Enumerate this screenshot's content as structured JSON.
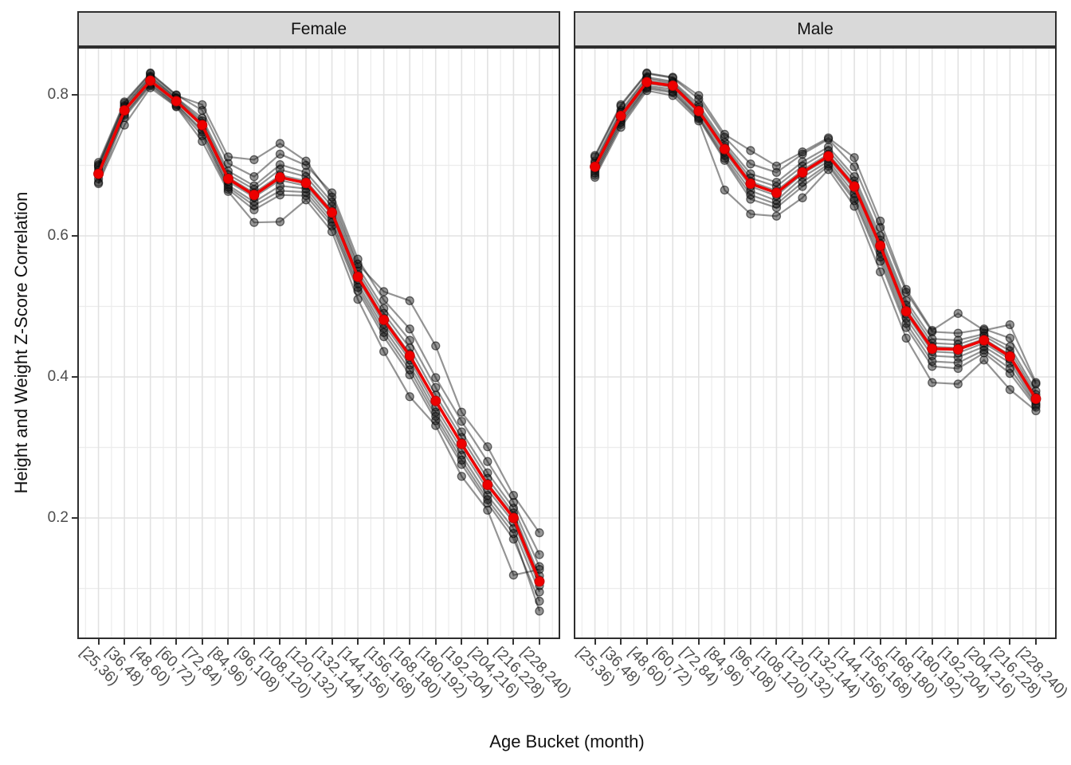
{
  "figure": {
    "y_axis_title": "Height and Weight Z-Score Correlation",
    "x_axis_title": "Age Bucket (month)"
  },
  "chart_data": {
    "type": "line",
    "faceted": true,
    "title": "",
    "xlabel": "Age Bucket (month)",
    "ylabel": "Height and Weight Z-Score Correlation",
    "categories": [
      "[25,36)",
      "[36,48)",
      "[48,60)",
      "[60,72)",
      "[72,84)",
      "[84,96)",
      "[96,108)",
      "[108,120)",
      "[120,132)",
      "[132,144)",
      "[144,156)",
      "[156,168)",
      "[168,180)",
      "[180,192)",
      "[192,204)",
      "[204,216)",
      "[216,228)",
      "[228,240)"
    ],
    "y_ticks": [
      0.8,
      0.6,
      0.4,
      0.2
    ],
    "y_tick_labels": [
      "0.8",
      "0.6",
      "0.4",
      "0.2"
    ],
    "ylim": [
      0.03,
      0.87
    ],
    "grid": {
      "major_y": [
        0.2,
        0.4,
        0.6,
        0.8
      ],
      "minor_y": [
        0.1,
        0.3,
        0.5,
        0.7
      ],
      "vertical": "per-category-with-minor"
    },
    "legend": "none",
    "style": {
      "mean_color": "#ee0000",
      "mean_point_edge": "#c00000",
      "replicate_line": "rgba(0,0,0,0.42)",
      "replicate_point_fill": "rgba(25,25,25,0.45)",
      "replicate_point_edge": "rgba(0,0,0,0.55)",
      "grid_major": "#e2e2e2",
      "grid_minor": "#ececec",
      "strip_fill": "#d9d9d9",
      "panel_border": "#2e2e2e",
      "axis_text_color": "#4d4d4d",
      "title_text_color": "#111111"
    },
    "facets": [
      {
        "label": "Female",
        "mean": {
          "name": "mean",
          "values": [
            0.688,
            0.778,
            0.82,
            0.791,
            0.757,
            0.681,
            0.658,
            0.683,
            0.675,
            0.633,
            0.542,
            0.481,
            0.43,
            0.366,
            0.305,
            0.247,
            0.2,
            0.11
          ]
        },
        "replicates": [
          {
            "values": [
              0.69,
              0.78,
              0.823,
              0.793,
              0.76,
              0.683,
              0.661,
              0.686,
              0.678,
              0.636,
              0.545,
              0.484,
              0.433,
              0.366,
              0.307,
              0.249,
              0.203,
              0.112
            ]
          },
          {
            "values": [
              0.697,
              0.785,
              0.827,
              0.796,
              0.767,
              0.692,
              0.671,
              0.701,
              0.69,
              0.648,
              0.556,
              0.497,
              0.452,
              0.385,
              0.322,
              0.264,
              0.214,
              0.131
            ]
          },
          {
            "values": [
              0.704,
              0.79,
              0.831,
              0.8,
              0.778,
              0.703,
              0.684,
              0.716,
              0.7,
              0.661,
              0.567,
              0.509,
              0.468,
              0.399,
              0.337,
              0.28,
              0.222,
              0.148
            ]
          },
          {
            "values": [
              0.681,
              0.773,
              0.817,
              0.787,
              0.75,
              0.672,
              0.648,
              0.671,
              0.667,
              0.624,
              0.532,
              0.469,
              0.417,
              0.35,
              0.289,
              0.232,
              0.185,
              0.095
            ]
          },
          {
            "values": [
              0.676,
              0.768,
              0.813,
              0.784,
              0.742,
              0.666,
              0.637,
              0.658,
              0.657,
              0.614,
              0.522,
              0.457,
              0.403,
              0.338,
              0.276,
              0.221,
              0.17,
              0.082
            ]
          },
          {
            "values": [
              0.674,
              0.757,
              0.81,
              0.783,
              0.734,
              0.663,
              0.619,
              0.62,
              0.651,
              0.606,
              0.51,
              0.436,
              0.372,
              0.331,
              0.259,
              0.211,
              0.119,
              0.127
            ]
          },
          {
            "values": [
              0.701,
              0.788,
              0.83,
              0.799,
              0.786,
              0.712,
              0.708,
              0.731,
              0.706,
              0.655,
              0.56,
              0.521,
              0.508,
              0.444,
              0.35,
              0.301,
              0.232,
              0.179
            ]
          },
          {
            "values": [
              0.693,
              0.777,
              0.819,
              0.79,
              0.755,
              0.677,
              0.655,
              0.679,
              0.671,
              0.63,
              0.538,
              0.475,
              0.424,
              0.357,
              0.297,
              0.24,
              0.194,
              0.104
            ]
          },
          {
            "values": [
              0.686,
              0.771,
              0.815,
              0.786,
              0.747,
              0.669,
              0.643,
              0.664,
              0.662,
              0.619,
              0.527,
              0.463,
              0.41,
              0.344,
              0.282,
              0.226,
              0.178,
              0.068
            ]
          },
          {
            "values": [
              0.699,
              0.783,
              0.825,
              0.795,
              0.763,
              0.687,
              0.666,
              0.694,
              0.684,
              0.642,
              0.55,
              0.49,
              0.441,
              0.374,
              0.314,
              0.256,
              0.207,
              0.118
            ]
          }
        ]
      },
      {
        "label": "Male",
        "mean": {
          "name": "mean",
          "values": [
            0.698,
            0.77,
            0.818,
            0.813,
            0.777,
            0.723,
            0.674,
            0.661,
            0.69,
            0.713,
            0.67,
            0.586,
            0.493,
            0.44,
            0.439,
            0.452,
            0.429,
            0.369
          ]
        },
        "replicates": [
          {
            "values": [
              0.7,
              0.772,
              0.82,
              0.815,
              0.779,
              0.725,
              0.677,
              0.664,
              0.693,
              0.716,
              0.673,
              0.589,
              0.496,
              0.443,
              0.441,
              0.454,
              0.431,
              0.371
            ]
          },
          {
            "values": [
              0.706,
              0.778,
              0.825,
              0.819,
              0.786,
              0.732,
              0.688,
              0.676,
              0.705,
              0.726,
              0.684,
              0.6,
              0.508,
              0.454,
              0.452,
              0.461,
              0.443,
              0.38
            ]
          },
          {
            "values": [
              0.712,
              0.784,
              0.83,
              0.824,
              0.794,
              0.74,
              0.702,
              0.69,
              0.716,
              0.737,
              0.698,
              0.612,
              0.52,
              0.464,
              0.462,
              0.468,
              0.455,
              0.39
            ]
          },
          {
            "values": [
              0.692,
              0.764,
              0.813,
              0.808,
              0.77,
              0.714,
              0.664,
              0.65,
              0.683,
              0.706,
              0.66,
              0.576,
              0.483,
              0.43,
              0.428,
              0.443,
              0.42,
              0.362
            ]
          },
          {
            "values": [
              0.686,
              0.758,
              0.809,
              0.803,
              0.766,
              0.707,
              0.652,
              0.64,
              0.67,
              0.699,
              0.65,
              0.564,
              0.47,
              0.415,
              0.412,
              0.434,
              0.405,
              0.357
            ]
          },
          {
            "values": [
              0.683,
              0.754,
              0.806,
              0.799,
              0.763,
              0.665,
              0.631,
              0.628,
              0.654,
              0.694,
              0.642,
              0.549,
              0.455,
              0.392,
              0.39,
              0.424,
              0.382,
              0.352
            ]
          },
          {
            "values": [
              0.714,
              0.786,
              0.831,
              0.825,
              0.799,
              0.744,
              0.721,
              0.699,
              0.719,
              0.739,
              0.711,
              0.621,
              0.524,
              0.466,
              0.49,
              0.466,
              0.474,
              0.392
            ]
          },
          {
            "values": [
              0.695,
              0.767,
              0.816,
              0.811,
              0.774,
              0.719,
              0.67,
              0.657,
              0.688,
              0.71,
              0.666,
              0.582,
              0.489,
              0.436,
              0.434,
              0.448,
              0.425,
              0.366
            ]
          },
          {
            "values": [
              0.689,
              0.761,
              0.811,
              0.805,
              0.768,
              0.71,
              0.658,
              0.645,
              0.676,
              0.702,
              0.654,
              0.57,
              0.476,
              0.422,
              0.42,
              0.438,
              0.412,
              0.36
            ]
          },
          {
            "values": [
              0.703,
              0.775,
              0.823,
              0.817,
              0.782,
              0.728,
              0.682,
              0.67,
              0.699,
              0.721,
              0.678,
              0.594,
              0.502,
              0.448,
              0.446,
              0.458,
              0.437,
              0.375
            ]
          }
        ]
      }
    ]
  }
}
